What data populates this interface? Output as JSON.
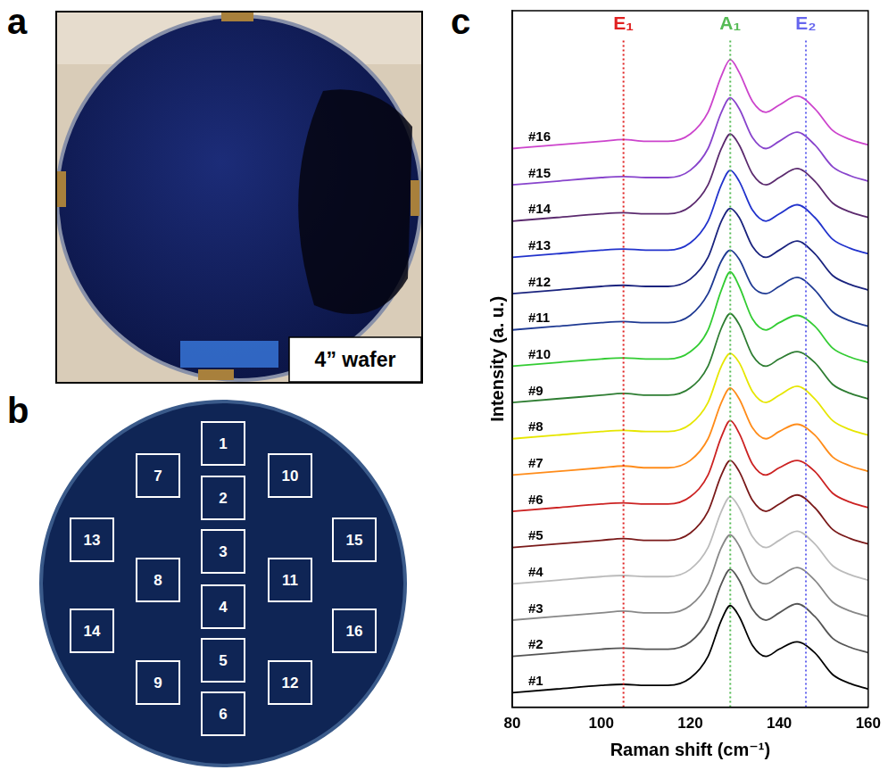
{
  "panel_a": {
    "letter": "a",
    "label": "4” wafer"
  },
  "panel_b": {
    "letter": "b",
    "sites": [
      "1",
      "2",
      "3",
      "4",
      "5",
      "6",
      "7",
      "8",
      "9",
      "10",
      "11",
      "12",
      "13",
      "14",
      "15",
      "16"
    ]
  },
  "chart_data": {
    "letter": "c",
    "type": "line",
    "x_label": "Raman shift (cm⁻¹)",
    "y_label": "Intensity (a. u.)",
    "x": [
      80,
      90,
      100,
      105,
      110,
      115,
      120,
      124,
      127,
      129,
      131,
      134,
      137,
      140,
      144,
      148,
      152,
      156,
      160
    ],
    "series": [
      {
        "name": "#1",
        "color": "#000000",
        "values": [
          0,
          1,
          2,
          2.3,
          2,
          2,
          4,
          10,
          20,
          24,
          21,
          13,
          10,
          12,
          14,
          11,
          5,
          2.5,
          1
        ]
      },
      {
        "name": "#2",
        "color": "#555555",
        "values": [
          10,
          11,
          12,
          12.3,
          12,
          12,
          14,
          20,
          30,
          34,
          31,
          23,
          20,
          22,
          24.5,
          21,
          15,
          12.5,
          11
        ]
      },
      {
        "name": "#3",
        "color": "#888888",
        "values": [
          20,
          21,
          22,
          22.5,
          22,
          22,
          24,
          30,
          40,
          43.5,
          40.5,
          32.5,
          30,
          32,
          34.5,
          31,
          25,
          22.5,
          21
        ]
      },
      {
        "name": "#4",
        "color": "#bbbbbb",
        "values": [
          30,
          31,
          32,
          32.3,
          32,
          32,
          34,
          40,
          50,
          54,
          51,
          43,
          40,
          42,
          44.5,
          41,
          35,
          32.5,
          31
        ]
      },
      {
        "name": "#5",
        "color": "#7a1a1a",
        "values": [
          40,
          41,
          42,
          42.5,
          42,
          42,
          44,
          50,
          60,
          64,
          61,
          53,
          50,
          52,
          54.5,
          51,
          45,
          42.5,
          41
        ]
      },
      {
        "name": "#6",
        "color": "#cc2222",
        "values": [
          50,
          51,
          52,
          52.3,
          52,
          52,
          54,
          60,
          70.5,
          75,
          71.5,
          63,
          60,
          62,
          64,
          61,
          55,
          52.5,
          51
        ]
      },
      {
        "name": "#7",
        "color": "#ff8c1a",
        "values": [
          60,
          61,
          62,
          62.5,
          62,
          62,
          64,
          70,
          80,
          84,
          81,
          73,
          70,
          72,
          74,
          71,
          65,
          62.5,
          61
        ]
      },
      {
        "name": "#8",
        "color": "#e6e600",
        "values": [
          70,
          71,
          72,
          72.3,
          72,
          72,
          74,
          80,
          90,
          93.5,
          91,
          83,
          80,
          82,
          84.5,
          81,
          75,
          72.5,
          71
        ]
      },
      {
        "name": "#9",
        "color": "#2e7d32",
        "values": [
          80,
          81,
          82,
          82.5,
          82,
          82,
          84,
          90,
          100.5,
          104.5,
          101.5,
          93,
          90,
          92,
          94,
          91,
          85,
          82.5,
          81
        ]
      },
      {
        "name": "#10",
        "color": "#33cc33",
        "values": [
          90,
          91,
          92,
          92.3,
          92,
          92,
          94,
          100,
          111,
          116,
          112,
          103,
          100,
          102,
          104,
          101,
          95,
          92.5,
          91
        ]
      },
      {
        "name": "#11",
        "color": "#1f3a93",
        "values": [
          100,
          101,
          102,
          102.3,
          102,
          102,
          104,
          110,
          119,
          122,
          119.5,
          112,
          110,
          112,
          114.5,
          111,
          105,
          102.5,
          101
        ]
      },
      {
        "name": "#12",
        "color": "#1a237e",
        "values": [
          110,
          111,
          112,
          112.3,
          112,
          112,
          114,
          120,
          130,
          133.5,
          131,
          123,
          120,
          122,
          124.5,
          121,
          115,
          112.5,
          111
        ]
      },
      {
        "name": "#13",
        "color": "#2233cc",
        "values": [
          120,
          121,
          122,
          122.3,
          122,
          122,
          124,
          130,
          140,
          144,
          141,
          133,
          130,
          132,
          134.5,
          131,
          125,
          122.5,
          121
        ]
      },
      {
        "name": "#14",
        "color": "#5b2a6e",
        "values": [
          130,
          131,
          132,
          132.3,
          132,
          132,
          134,
          140,
          150,
          154,
          151,
          143,
          140,
          142,
          144.5,
          141,
          135,
          132.5,
          131
        ]
      },
      {
        "name": "#15",
        "color": "#8844cc",
        "values": [
          140,
          141,
          142,
          142.3,
          142,
          142,
          144,
          150,
          160,
          164,
          161,
          153,
          150,
          152,
          154.5,
          151,
          145,
          142.5,
          141
        ]
      },
      {
        "name": "#16",
        "color": "#cc44cc",
        "values": [
          150,
          151,
          152,
          152.5,
          152,
          152,
          154,
          160,
          170,
          174.5,
          171,
          163,
          160,
          162,
          164.5,
          161,
          155,
          152.5,
          151
        ]
      }
    ],
    "annotations": [
      {
        "text": "E₁",
        "x": 105,
        "color": "#e02020"
      },
      {
        "text": "A₁",
        "x": 129,
        "color": "#55bb55"
      },
      {
        "text": "E₂",
        "x": 146,
        "color": "#6666ee"
      }
    ],
    "xlim": [
      80,
      160
    ],
    "xticks": [
      80,
      100,
      120,
      140,
      160
    ],
    "ylim": [
      -4,
      188
    ],
    "tick_labels": "x",
    "grid": false
  }
}
